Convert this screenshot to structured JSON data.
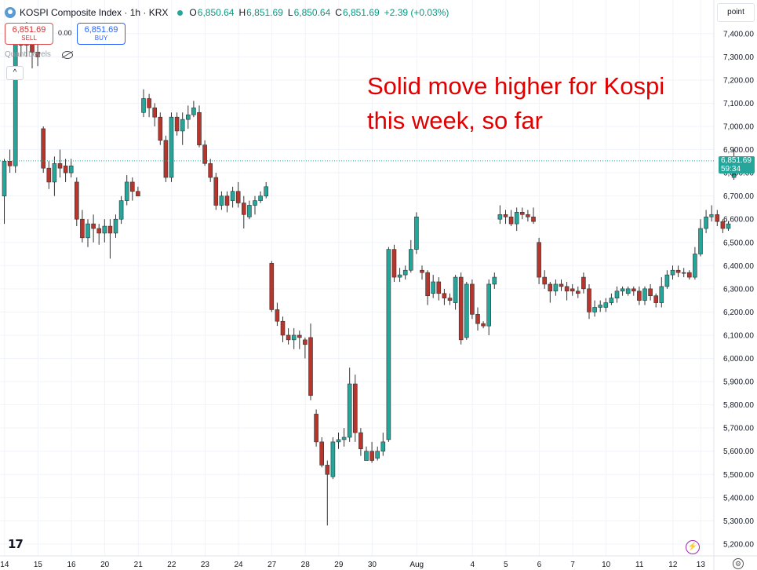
{
  "header": {
    "title": "KOSPI Composite Index · 1h · KRX",
    "o_label": "O",
    "o_value": "6,850.64",
    "h_label": "H",
    "h_value": "6,851.69",
    "l_label": "L",
    "l_value": "6,850.64",
    "c_label": "C",
    "c_value": "6,851.69",
    "change": "+2.39 (+0.03%)"
  },
  "trade": {
    "sell_price": "6,851.69",
    "sell_label": "SELL",
    "spread": "0.00",
    "buy_price": "6,851.69",
    "buy_label": "BUY"
  },
  "quant_levels_label": "Quant Levels",
  "annotation": "Solid move higher for Kospi this week, so far",
  "price_scale_unit": "point",
  "last_price_label": {
    "price": "6,851.69",
    "countdown": "59:34"
  },
  "colors": {
    "up": "#26a69a",
    "down": "#b6352d",
    "annotation": "#e00000",
    "accent": "#2962ff"
  },
  "icons": [
    "tradingview-logo-icon",
    "lightning-icon",
    "settings-icon",
    "eye-off-icon",
    "chevron-up-icon"
  ],
  "chart_data": {
    "type": "candlestick",
    "title": "KOSPI Composite Index · 1h · KRX",
    "ylabel": "point",
    "ylim": [
      5150,
      7500
    ],
    "y_ticks": [
      5200,
      5300,
      5400,
      5500,
      5600,
      5700,
      5800,
      5900,
      6000,
      6100,
      6200,
      6300,
      6400,
      6500,
      6600,
      6700,
      6800,
      6900,
      7000,
      7100,
      7200,
      7300,
      7400
    ],
    "x_tick_labels": [
      "14",
      "15",
      "16",
      "20",
      "21",
      "22",
      "23",
      "24",
      "27",
      "28",
      "29",
      "30",
      "Aug",
      "4",
      "5",
      "6",
      "7",
      "10",
      "11",
      "12",
      "13"
    ],
    "x_tick_slots": [
      0.4,
      6.4,
      12.4,
      18.4,
      24.4,
      30.4,
      36.4,
      42.4,
      48.4,
      54.4,
      60.4,
      66.4,
      74.4,
      84.4,
      90.4,
      96.4,
      102.4,
      108.4,
      114.4,
      120.4,
      125.4
    ],
    "grid": true,
    "last_price": 6851.69,
    "candles": [
      [
        6700,
        6850,
        6580,
        6860
      ],
      [
        6850,
        6830,
        6800,
        6900
      ],
      [
        6830,
        7380,
        6800,
        7420
      ],
      [
        7380,
        7350,
        7300,
        7420
      ],
      [
        7350,
        7380,
        7300,
        7450
      ],
      [
        7380,
        7320,
        7250,
        7400
      ],
      [
        7320,
        7300,
        7260,
        7360
      ],
      [
        6990,
        6820,
        6800,
        7000
      ],
      [
        6820,
        6760,
        6730,
        6850
      ],
      [
        6760,
        6840,
        6700,
        6870
      ],
      [
        6840,
        6820,
        6780,
        6900
      ],
      [
        6830,
        6800,
        6760,
        6860
      ],
      [
        6800,
        6830,
        6780,
        6860
      ],
      [
        6760,
        6600,
        6570,
        6780
      ],
      [
        6600,
        6520,
        6500,
        6640
      ],
      [
        6520,
        6580,
        6480,
        6600
      ],
      [
        6580,
        6560,
        6500,
        6620
      ],
      [
        6560,
        6540,
        6490,
        6580
      ],
      [
        6540,
        6570,
        6500,
        6600
      ],
      [
        6570,
        6540,
        6430,
        6600
      ],
      [
        6540,
        6600,
        6520,
        6620
      ],
      [
        6600,
        6680,
        6580,
        6700
      ],
      [
        6680,
        6760,
        6660,
        6790
      ],
      [
        6760,
        6720,
        6680,
        6780
      ],
      [
        6720,
        6700,
        6700,
        6740
      ],
      [
        7060,
        7120,
        7040,
        7160
      ],
      [
        7120,
        7080,
        7040,
        7140
      ],
      [
        7080,
        7040,
        7000,
        7100
      ],
      [
        7040,
        6940,
        6920,
        7060
      ],
      [
        6940,
        6780,
        6760,
        6960
      ],
      [
        6780,
        7040,
        6760,
        7060
      ],
      [
        7040,
        6980,
        6960,
        7060
      ],
      [
        6980,
        7030,
        6920,
        7060
      ],
      [
        7030,
        7050,
        6990,
        7090
      ],
      [
        7050,
        7080,
        7040,
        7110
      ],
      [
        7060,
        6920,
        6910,
        7090
      ],
      [
        6920,
        6840,
        6830,
        6940
      ],
      [
        6840,
        6780,
        6760,
        6860
      ],
      [
        6780,
        6660,
        6640,
        6800
      ],
      [
        6660,
        6700,
        6640,
        6720
      ],
      [
        6700,
        6660,
        6630,
        6720
      ],
      [
        6680,
        6720,
        6650,
        6740
      ],
      [
        6720,
        6670,
        6650,
        6760
      ],
      [
        6670,
        6620,
        6560,
        6700
      ],
      [
        6610,
        6660,
        6600,
        6680
      ],
      [
        6660,
        6680,
        6620,
        6700
      ],
      [
        6680,
        6700,
        6670,
        6720
      ],
      [
        6700,
        6740,
        6690,
        6760
      ],
      [
        6410,
        6210,
        6200,
        6420
      ],
      [
        6210,
        6160,
        6140,
        6240
      ],
      [
        6160,
        6100,
        6070,
        6180
      ],
      [
        6100,
        6080,
        6060,
        6130
      ],
      [
        6080,
        6100,
        6040,
        6130
      ],
      [
        6100,
        6090,
        6040,
        6120
      ],
      [
        6080,
        6060,
        6000,
        6090
      ],
      [
        6090,
        5840,
        5820,
        6150
      ],
      [
        5760,
        5640,
        5620,
        5780
      ],
      [
        5640,
        5540,
        5530,
        5660
      ],
      [
        5540,
        5500,
        5280,
        5560
      ],
      [
        5490,
        5640,
        5480,
        5660
      ],
      [
        5640,
        5650,
        5610,
        5680
      ],
      [
        5650,
        5660,
        5620,
        5700
      ],
      [
        5660,
        5890,
        5640,
        5960
      ],
      [
        5890,
        5680,
        5640,
        5930
      ],
      [
        5680,
        5610,
        5580,
        5700
      ],
      [
        5560,
        5600,
        5560,
        5620
      ],
      [
        5600,
        5560,
        5550,
        5640
      ],
      [
        5570,
        5600,
        5560,
        5620
      ],
      [
        5600,
        5640,
        5580,
        5680
      ],
      [
        5650,
        6470,
        5640,
        6480
      ],
      [
        6470,
        6350,
        6330,
        6490
      ],
      [
        6350,
        6360,
        6330,
        6390
      ],
      [
        6360,
        6380,
        6340,
        6400
      ],
      [
        6380,
        6470,
        6370,
        6510
      ],
      [
        6470,
        6610,
        6450,
        6630
      ],
      [
        6380,
        6370,
        6340,
        6400
      ],
      [
        6370,
        6270,
        6230,
        6380
      ],
      [
        6280,
        6330,
        6260,
        6360
      ],
      [
        6330,
        6280,
        6250,
        6350
      ],
      [
        6280,
        6260,
        6230,
        6300
      ],
      [
        6260,
        6250,
        6230,
        6280
      ],
      [
        6240,
        6350,
        6210,
        6360
      ],
      [
        6350,
        6080,
        6060,
        6370
      ],
      [
        6090,
        6320,
        6080,
        6330
      ],
      [
        6320,
        6190,
        6170,
        6340
      ],
      [
        6190,
        6150,
        6120,
        6220
      ],
      [
        6150,
        6140,
        6130,
        6160
      ],
      [
        6140,
        6320,
        6100,
        6340
      ],
      [
        6320,
        6350,
        6300,
        6370
      ],
      [
        6600,
        6620,
        6580,
        6660
      ],
      [
        6620,
        6610,
        6580,
        6640
      ],
      [
        6610,
        6580,
        6570,
        6640
      ],
      [
        6580,
        6630,
        6550,
        6650
      ],
      [
        6630,
        6620,
        6600,
        6650
      ],
      [
        6620,
        6610,
        6590,
        6640
      ],
      [
        6610,
        6590,
        6580,
        6650
      ],
      [
        6500,
        6350,
        6320,
        6520
      ],
      [
        6350,
        6320,
        6300,
        6380
      ],
      [
        6320,
        6290,
        6240,
        6330
      ],
      [
        6290,
        6320,
        6270,
        6340
      ],
      [
        6320,
        6310,
        6290,
        6340
      ],
      [
        6310,
        6290,
        6250,
        6330
      ],
      [
        6300,
        6290,
        6270,
        6320
      ],
      [
        6290,
        6280,
        6260,
        6310
      ],
      [
        6350,
        6300,
        6280,
        6370
      ],
      [
        6300,
        6200,
        6170,
        6320
      ],
      [
        6200,
        6220,
        6180,
        6250
      ],
      [
        6220,
        6230,
        6200,
        6250
      ],
      [
        6220,
        6240,
        6200,
        6260
      ],
      [
        6240,
        6260,
        6230,
        6280
      ],
      [
        6260,
        6290,
        6240,
        6310
      ],
      [
        6290,
        6300,
        6270,
        6310
      ],
      [
        6280,
        6300,
        6270,
        6310
      ],
      [
        6300,
        6290,
        6270,
        6310
      ],
      [
        6290,
        6250,
        6230,
        6310
      ],
      [
        6250,
        6300,
        6230,
        6310
      ],
      [
        6300,
        6270,
        6250,
        6320
      ],
      [
        6270,
        6240,
        6220,
        6280
      ],
      [
        6240,
        6310,
        6220,
        6350
      ],
      [
        6310,
        6360,
        6300,
        6380
      ],
      [
        6360,
        6380,
        6340,
        6400
      ],
      [
        6380,
        6370,
        6350,
        6400
      ],
      [
        6370,
        6370,
        6350,
        6390
      ],
      [
        6370,
        6350,
        6340,
        6380
      ],
      [
        6350,
        6450,
        6340,
        6480
      ],
      [
        6450,
        6560,
        6440,
        6600
      ],
      [
        6560,
        6610,
        6540,
        6640
      ],
      [
        6610,
        6620,
        6590,
        6660
      ],
      [
        6620,
        6590,
        6570,
        6640
      ],
      [
        6590,
        6560,
        6540,
        6600
      ],
      [
        6560,
        6580,
        6550,
        6590
      ],
      [
        6780,
        6840,
        6770,
        6900
      ],
      [
        6840,
        6850,
        6830,
        6860
      ],
      [
        6850,
        6852,
        6850,
        6852
      ]
    ]
  }
}
